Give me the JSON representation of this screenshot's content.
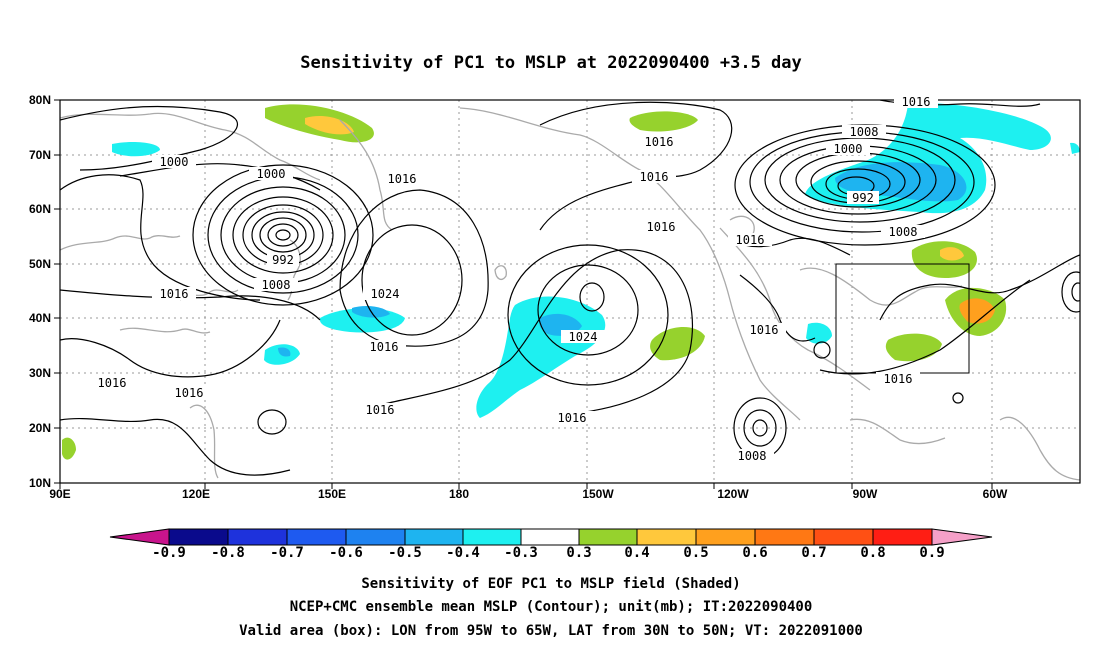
{
  "title": "Sensitivity of PC1 to MSLP at 2022090400 +3.5 day",
  "axes": {
    "lat_labels": [
      "80N",
      "70N",
      "60N",
      "50N",
      "40N",
      "30N",
      "20N",
      "10N"
    ],
    "lon_labels": [
      "90E",
      "120E",
      "150E",
      "180",
      "150W",
      "120W",
      "90W",
      "60W"
    ]
  },
  "contour_labels": [
    {
      "text": "1016"
    },
    {
      "text": "1000"
    },
    {
      "text": "1016"
    },
    {
      "text": "1008"
    },
    {
      "text": "1000"
    },
    {
      "text": "992"
    },
    {
      "text": "1008"
    },
    {
      "text": "1016"
    },
    {
      "text": "1000"
    },
    {
      "text": "1016"
    },
    {
      "text": "992"
    },
    {
      "text": "1008"
    },
    {
      "text": "1016"
    },
    {
      "text": "1016"
    },
    {
      "text": "1024"
    },
    {
      "text": "1016"
    },
    {
      "text": "1016"
    },
    {
      "text": "1016"
    },
    {
      "text": "1024"
    },
    {
      "text": "1016"
    },
    {
      "text": "1016"
    },
    {
      "text": "1016"
    },
    {
      "text": "1008"
    },
    {
      "text": "1016"
    },
    {
      "text": "1016"
    }
  ],
  "colorbar": {
    "labels": [
      "-0.9",
      "-0.8",
      "-0.7",
      "-0.6",
      "-0.5",
      "-0.4",
      "-0.3",
      "0.3",
      "0.4",
      "0.5",
      "0.6",
      "0.7",
      "0.8",
      "0.9"
    ],
    "colors": [
      "#0a0a8c",
      "#1e32dc",
      "#1e5af0",
      "#1e82f0",
      "#1eb4f0",
      "#1ef0f0",
      "#ffffff",
      "#96d22d",
      "#ffc83c",
      "#ffa01e",
      "#ff7814",
      "#ff5014",
      "#ff1e14"
    ],
    "low_extend_color": "#c8148c",
    "high_extend_color": "#f5a0c8"
  },
  "captions": {
    "line1": "Sensitivity of EOF PC1 to MSLP field (Shaded)",
    "line2": "NCEP+CMC ensemble mean MSLP (Contour); unit(mb); IT:2022090400",
    "line3": "Valid area (box): LON from 95W to 65W, LAT from 30N to 50N; VT: 2022091000"
  }
}
